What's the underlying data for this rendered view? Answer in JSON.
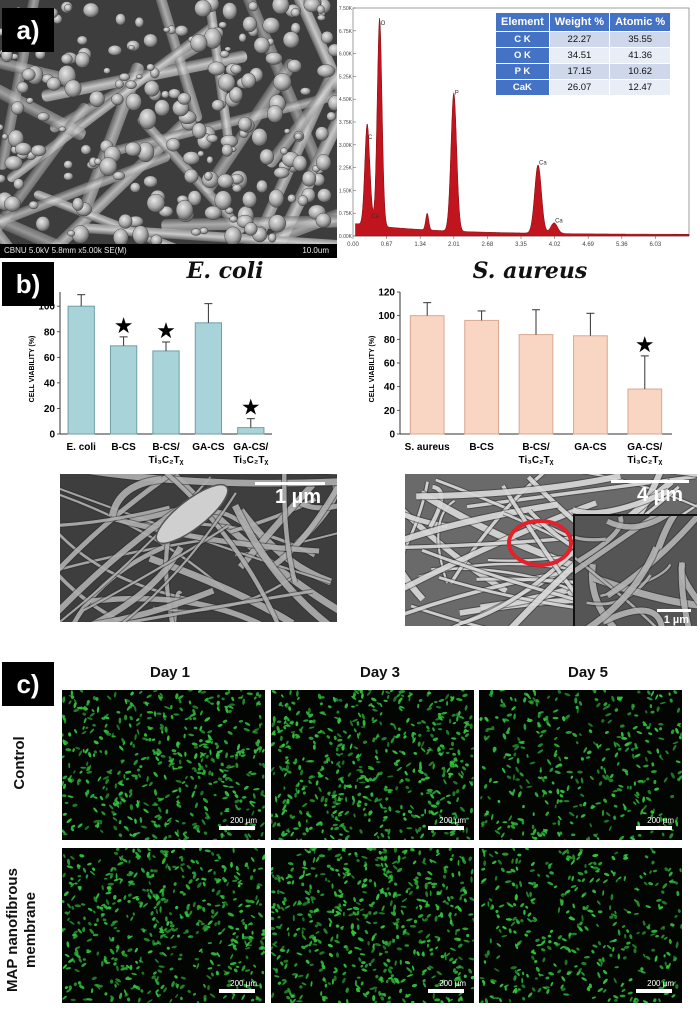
{
  "panels": {
    "a": "a)",
    "b": "b)",
    "c": "c)"
  },
  "sem_a": {
    "info_left": "CBNU 5.0kV 5.8mm x5.00k SE(M)",
    "info_right": "10.0um"
  },
  "eds": {
    "table_headers": [
      "Element",
      "Weight %",
      "Atomic %"
    ],
    "rows": [
      {
        "element": "C K",
        "weight": "22.27",
        "atomic": "35.55"
      },
      {
        "element": "O K",
        "weight": "34.51",
        "atomic": "41.36"
      },
      {
        "element": "P K",
        "weight": "17.15",
        "atomic": "10.62"
      },
      {
        "element": "CaK",
        "weight": "26.07",
        "atomic": "12.47"
      }
    ]
  },
  "chart_data": [
    {
      "type": "bar",
      "title": "E. coli",
      "ylabel": "CELL VIABILITY (%)",
      "ylim": [
        0,
        120
      ],
      "yticks": [
        "0",
        "20",
        "40",
        "60",
        "80",
        "100"
      ],
      "categories": [
        {
          "line1": "E. coli",
          "line2": ""
        },
        {
          "line1": "B-CS",
          "line2": ""
        },
        {
          "line1": "B-CS/",
          "line2": "Ti₃C₂Tᵪ"
        },
        {
          "line1": "GA-CS",
          "line2": ""
        },
        {
          "line1": "GA-CS/",
          "line2": "Ti₃C₂Tᵪ"
        }
      ],
      "values": [
        100,
        69,
        65,
        87,
        5
      ],
      "errors": [
        9,
        7,
        7,
        15,
        7
      ],
      "significant": [
        false,
        true,
        true,
        false,
        true
      ],
      "bar_color": "#a8d4d9",
      "bar_stroke": "#6f9fa6"
    },
    {
      "type": "bar",
      "title": "S. aureus",
      "ylabel": "CELL VIABILITY (%)",
      "ylim": [
        0,
        120
      ],
      "yticks": [
        "0",
        "20",
        "40",
        "60",
        "80",
        "100",
        "120"
      ],
      "categories": [
        {
          "line1": "S. aureus",
          "line2": ""
        },
        {
          "line1": "B-CS",
          "line2": ""
        },
        {
          "line1": "B-CS/",
          "line2": "Ti₃C₂Tᵪ"
        },
        {
          "line1": "GA-CS",
          "line2": ""
        },
        {
          "line1": "GA-CS/",
          "line2": "Ti₃C₂Tᵪ"
        }
      ],
      "values": [
        100,
        96,
        84,
        83,
        38
      ],
      "errors": [
        11,
        8,
        21,
        19,
        28
      ],
      "significant": [
        false,
        false,
        false,
        false,
        true
      ],
      "bar_color": "#f9d5c3",
      "bar_stroke": "#d9a88f"
    }
  ],
  "eds_spectrum": {
    "type": "line",
    "x_ticks": [
      "0.00",
      "0.67",
      "1.34",
      "2.01",
      "2.68",
      "3.35",
      "4.02",
      "4.69",
      "5.36",
      "6.03"
    ],
    "y_ticks": [
      "0.00K",
      "0.75K",
      "1.50K",
      "2.25K",
      "3.00K",
      "3.75K",
      "4.50K",
      "5.25K",
      "6.00K",
      "6.75K",
      "7.50K"
    ],
    "peaks": [
      {
        "label": "C",
        "kev": 0.28,
        "counts": 3.1
      },
      {
        "label": "Ca",
        "kev": 0.34,
        "counts": 0.5
      },
      {
        "label": "O",
        "kev": 0.53,
        "counts": 6.85
      },
      {
        "label": "P",
        "kev": 2.01,
        "counts": 4.55
      },
      {
        "label": "Ca",
        "kev": 3.69,
        "counts": 2.25
      },
      {
        "label": "Ca",
        "kev": 4.01,
        "counts": 0.35
      }
    ],
    "color": "#c0141e"
  },
  "sem_b": {
    "left_scale": "1 µm",
    "right_scale": "4 µm",
    "inset_scale": "1 µm"
  },
  "fluorescence": {
    "days": [
      "Day 1",
      "Day 3",
      "Day 5"
    ],
    "rows": [
      "Control",
      "MAP nanofibrous membrane"
    ],
    "scale": "200 µm",
    "color": "#33c23d"
  }
}
